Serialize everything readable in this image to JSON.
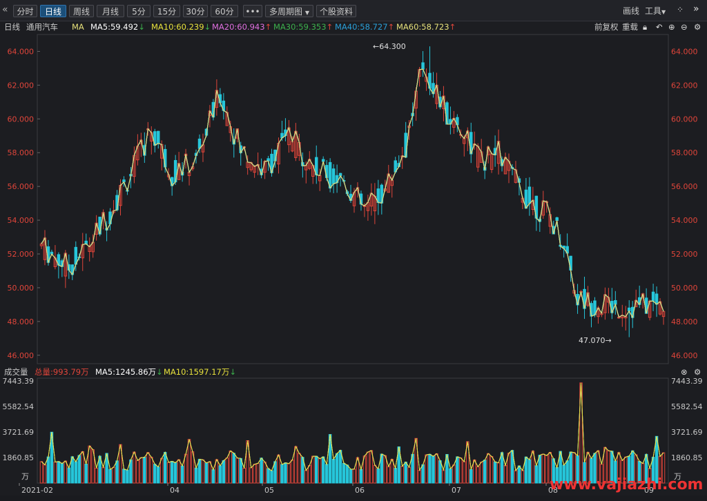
{
  "toolbar": {
    "tabs": [
      "分时",
      "日线",
      "周线",
      "月线",
      "5分",
      "15分",
      "30分",
      "60分"
    ],
    "active_tab": "日线",
    "more": "•••",
    "multi_period": "多周期图",
    "multi_period_arrow": "▼",
    "stock_info": "个股资料",
    "draw": "画线",
    "tools": "工具",
    "tools_arrow": "▼"
  },
  "ma_bar": {
    "period": "日线",
    "stock_name": "通用汽车",
    "ma_label": "MA",
    "ma5": "MA5:59.492",
    "ma10": "MA10:60.239",
    "ma20": "MA20:60.943",
    "ma30": "MA30:59.353",
    "ma40": "MA40:58.727",
    "ma60": "MA60:58.723",
    "adjust": "前复权",
    "reset": "重载"
  },
  "vol_bar": {
    "label": "成交量",
    "total": "总量:993.79万",
    "ma5": "MA5:1245.86万",
    "ma10": "MA10:1597.17万"
  },
  "colors": {
    "up": "#e0453a",
    "down": "#26c6da",
    "ma5": "#ffffff",
    "ma10": "#e8e23c",
    "ma20": "#e070e0",
    "ma30": "#3cb04c",
    "ma40": "#2a9fd8",
    "ma60": "#e6e07a"
  },
  "price_axis": [
    "64.000",
    "62.000",
    "60.000",
    "58.000",
    "56.000",
    "54.000",
    "52.000",
    "50.000",
    "48.000",
    "46.000"
  ],
  "volume_axis": [
    "7443.39",
    "5582.54",
    "3721.69",
    "1860.85",
    "万"
  ],
  "date_axis": [
    "2021-02",
    "04",
    "05",
    "06",
    "07",
    "08",
    "09"
  ],
  "annotations": {
    "high": "←64.300",
    "low": "47.070→"
  },
  "watermark": "www.vajiazhi.com"
}
